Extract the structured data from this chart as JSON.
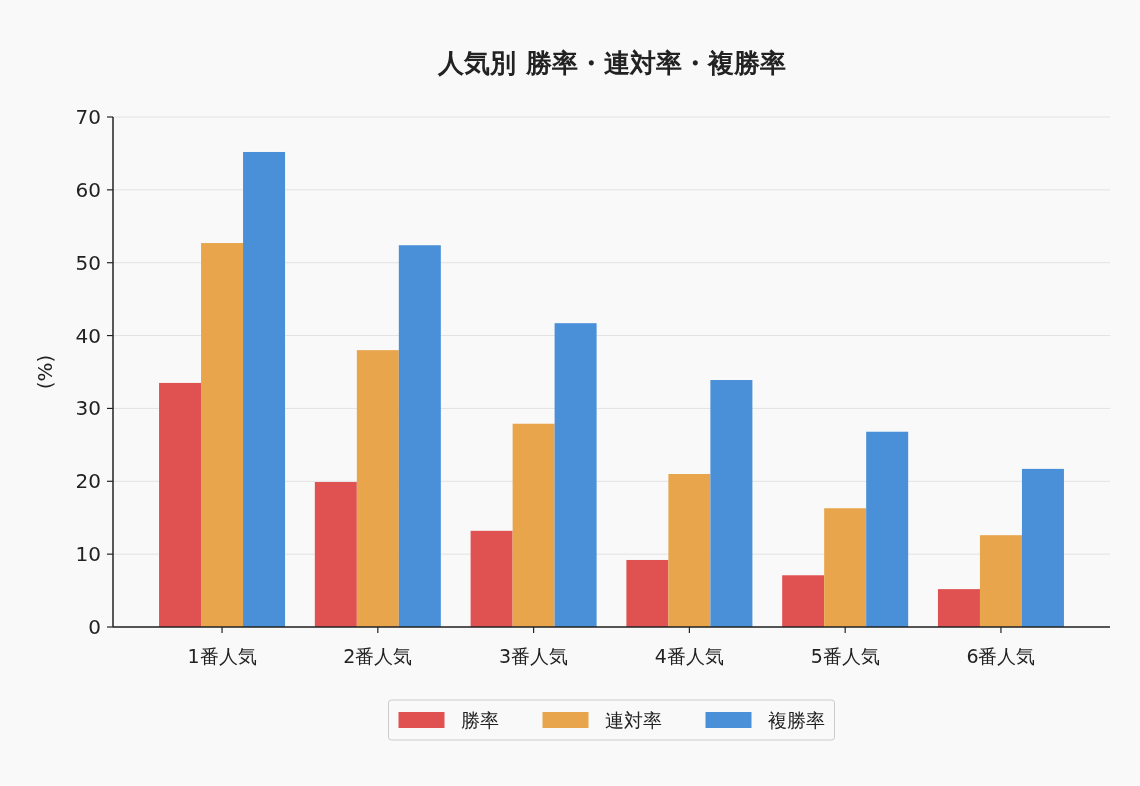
{
  "chart_data": {
    "type": "bar",
    "title": "人気別 勝率・連対率・複勝率",
    "ylabel": "(%)",
    "categories": [
      "1番人気",
      "2番人気",
      "3番人気",
      "4番人気",
      "5番人気",
      "6番人気"
    ],
    "series": [
      {
        "name": "勝率",
        "color": "#e05252",
        "values": [
          33.5,
          19.9,
          13.2,
          9.2,
          7.1,
          5.2
        ]
      },
      {
        "name": "連対率",
        "color": "#e8a54b",
        "values": [
          52.7,
          38.0,
          27.9,
          21.0,
          16.3,
          12.6
        ]
      },
      {
        "name": "複勝率",
        "color": "#4a90d9",
        "values": [
          65.2,
          52.4,
          41.7,
          33.9,
          26.8,
          21.7
        ]
      }
    ],
    "ylim": [
      0,
      70
    ],
    "yticks": [
      0,
      10,
      20,
      30,
      40,
      50,
      60,
      70
    ],
    "grid": "y",
    "legend": "bottom"
  }
}
